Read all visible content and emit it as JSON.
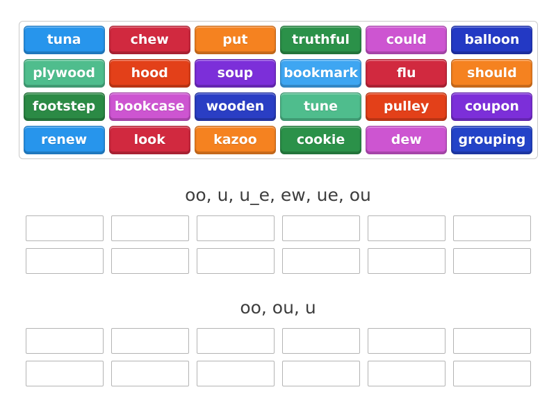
{
  "activity": {
    "word_bank": {
      "tiles": [
        {
          "word": "tuna",
          "color": "#2795ec"
        },
        {
          "word": "chew",
          "color": "#d1293f"
        },
        {
          "word": "put",
          "color": "#f58220"
        },
        {
          "word": "truthful",
          "color": "#2b9149"
        },
        {
          "word": "could",
          "color": "#cd55d1"
        },
        {
          "word": "balloon",
          "color": "#2339c4"
        },
        {
          "word": "plywood",
          "color": "#4fbd8d"
        },
        {
          "word": "hood",
          "color": "#e34019"
        },
        {
          "word": "soup",
          "color": "#7c2fd9"
        },
        {
          "word": "bookmark",
          "color": "#3ea6f2"
        },
        {
          "word": "flu",
          "color": "#d1293f"
        },
        {
          "word": "should",
          "color": "#f58220"
        },
        {
          "word": "footstep",
          "color": "#2b8a45"
        },
        {
          "word": "bookcase",
          "color": "#cd55d1"
        },
        {
          "word": "wooden",
          "color": "#2a3ec4"
        },
        {
          "word": "tune",
          "color": "#4fbd8d"
        },
        {
          "word": "pulley",
          "color": "#e34019"
        },
        {
          "word": "coupon",
          "color": "#7c2fd9"
        },
        {
          "word": "renew",
          "color": "#2795ec"
        },
        {
          "word": "look",
          "color": "#d1293f"
        },
        {
          "word": "kazoo",
          "color": "#f58220"
        },
        {
          "word": "cookie",
          "color": "#2b9149"
        },
        {
          "word": "dew",
          "color": "#cd55d1"
        },
        {
          "word": "grouping",
          "color": "#2343c8"
        }
      ]
    },
    "groups": [
      {
        "title": "oo, u, u_e, ew, ue, ou",
        "slot_count": 12
      },
      {
        "title": "oo, ou, u",
        "slot_count": 12
      }
    ],
    "colors": {
      "page_background": "#ffffff",
      "tray_border": "#c9c9c9",
      "slot_border": "#b3b3b3",
      "heading_text": "#3d3d3d",
      "tile_text": "#ffffff"
    }
  }
}
